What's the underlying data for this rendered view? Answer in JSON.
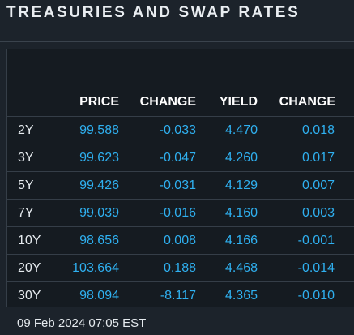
{
  "title": "TREASURIES AND SWAP RATES",
  "columns": {
    "price": "PRICE",
    "change": "CHANGE",
    "yield": "YIELD",
    "yield_change": "CHANGE"
  },
  "rows": [
    {
      "tenor": "2Y",
      "price": "99.588",
      "change": "-0.033",
      "yield": "4.470",
      "yield_change": "0.018"
    },
    {
      "tenor": "3Y",
      "price": "99.623",
      "change": "-0.047",
      "yield": "4.260",
      "yield_change": "0.017"
    },
    {
      "tenor": "5Y",
      "price": "99.426",
      "change": "-0.031",
      "yield": "4.129",
      "yield_change": "0.007"
    },
    {
      "tenor": "7Y",
      "price": "99.039",
      "change": "-0.016",
      "yield": "4.160",
      "yield_change": "0.003"
    },
    {
      "tenor": "10Y",
      "price": "98.656",
      "change": "0.008",
      "yield": "4.166",
      "yield_change": "-0.001"
    },
    {
      "tenor": "20Y",
      "price": "103.664",
      "change": "0.188",
      "yield": "4.468",
      "yield_change": "-0.014"
    },
    {
      "tenor": "30Y",
      "price": "98.094",
      "change": "-8.117",
      "yield": "4.365",
      "yield_change": "-0.010"
    }
  ],
  "timestamp": "09 Feb 2024 07:05 EST",
  "colors": {
    "background": "#1c232b",
    "table_background": "#151b21",
    "value_blue": "#2fb0f0",
    "text_light": "#e6ebef"
  }
}
